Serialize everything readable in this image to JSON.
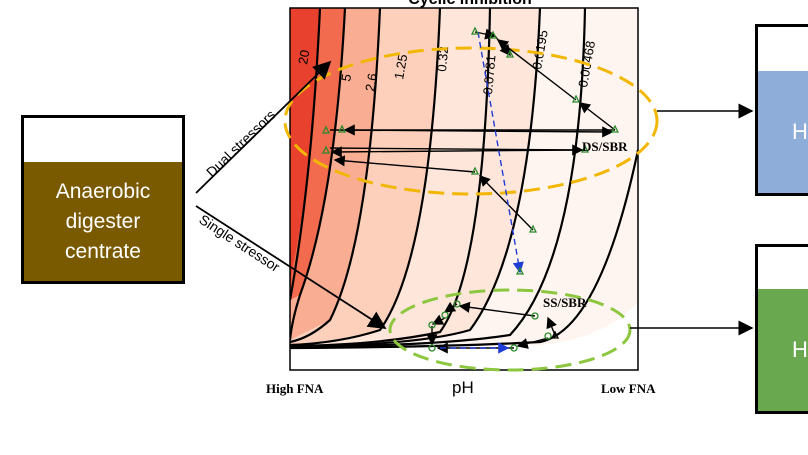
{
  "title": "Cyclic inhibition",
  "left_box": {
    "lines": [
      "Anaerobic",
      "digester",
      "centrate"
    ],
    "color": "#7a5a00"
  },
  "branches": {
    "upper": "Dual stressors",
    "lower": "Single stressor"
  },
  "plot": {
    "x_label": "pH",
    "x_left": "High FNA",
    "x_right": "Low FNA",
    "contours": [
      "20",
      "5",
      "2.6",
      "1.25",
      "0.32",
      "0.0781",
      "0.0195",
      "0.00468"
    ]
  },
  "groups": {
    "ds": {
      "label": "DS/SBR",
      "color": "#f2b705"
    },
    "ss": {
      "label": "SS/SBR",
      "color": "#8dc63f"
    }
  },
  "tanks": {
    "top": {
      "letter": "H",
      "color": "#8fadd9"
    },
    "bottom": {
      "letter": "H",
      "color": "#6aa84f"
    }
  }
}
